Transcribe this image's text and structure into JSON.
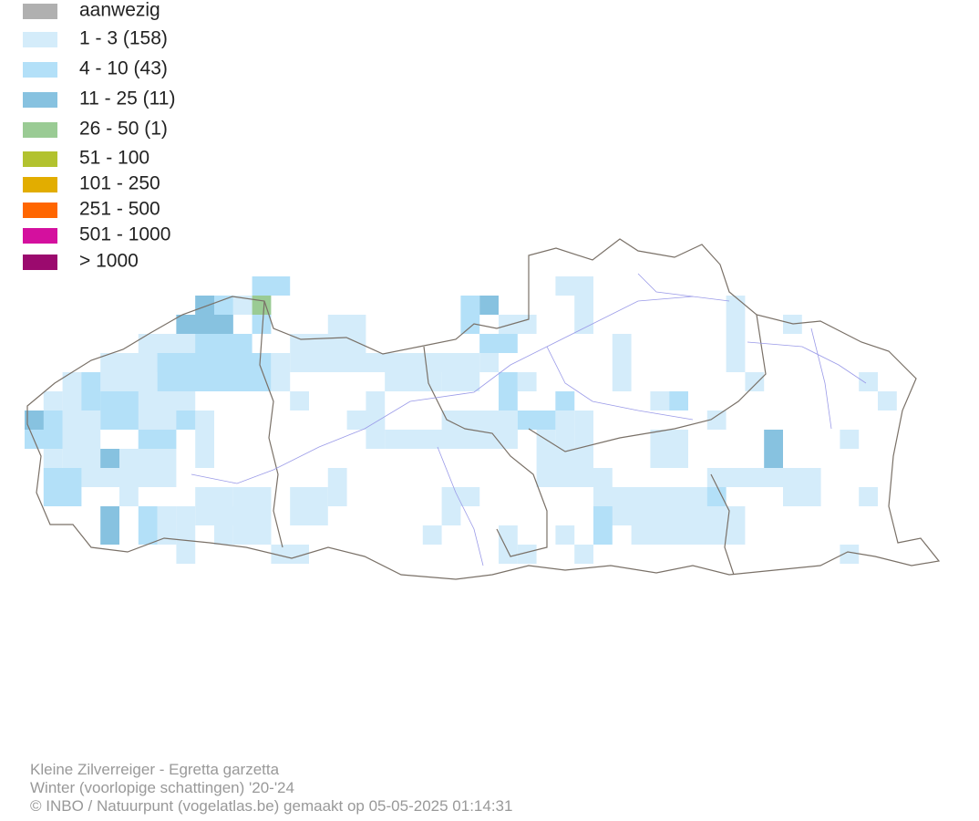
{
  "legend": {
    "items": [
      {
        "label": "aanwezig",
        "color": "#b0b0b0"
      },
      {
        "label": "1 - 3 (158)",
        "color": "#d4ecfa"
      },
      {
        "label": "4 - 10 (43)",
        "color": "#b3e0f8"
      },
      {
        "label": "11 - 25 (11)",
        "color": "#87c2e0"
      },
      {
        "label": "26 - 50 (1)",
        "color": "#9acb94"
      },
      {
        "label": "51 - 100",
        "color": "#b2c22f"
      },
      {
        "label": "101 - 250",
        "color": "#e2ad00"
      },
      {
        "label": "251 - 500",
        "color": "#ff6600"
      },
      {
        "label": "501 - 1000",
        "color": "#d4109e"
      },
      {
        "label": "> 1000",
        "color": "#9b0a6e"
      }
    ]
  },
  "footer": {
    "lines": [
      "Kleine Zilverreiger - Egretta garzetta",
      "Winter (voorlopige schattingen) '20-'24",
      "© INBO / Natuurpunt (vogelatlas.be) gemaakt op 05-05-2025 01:14:31"
    ]
  }
}
